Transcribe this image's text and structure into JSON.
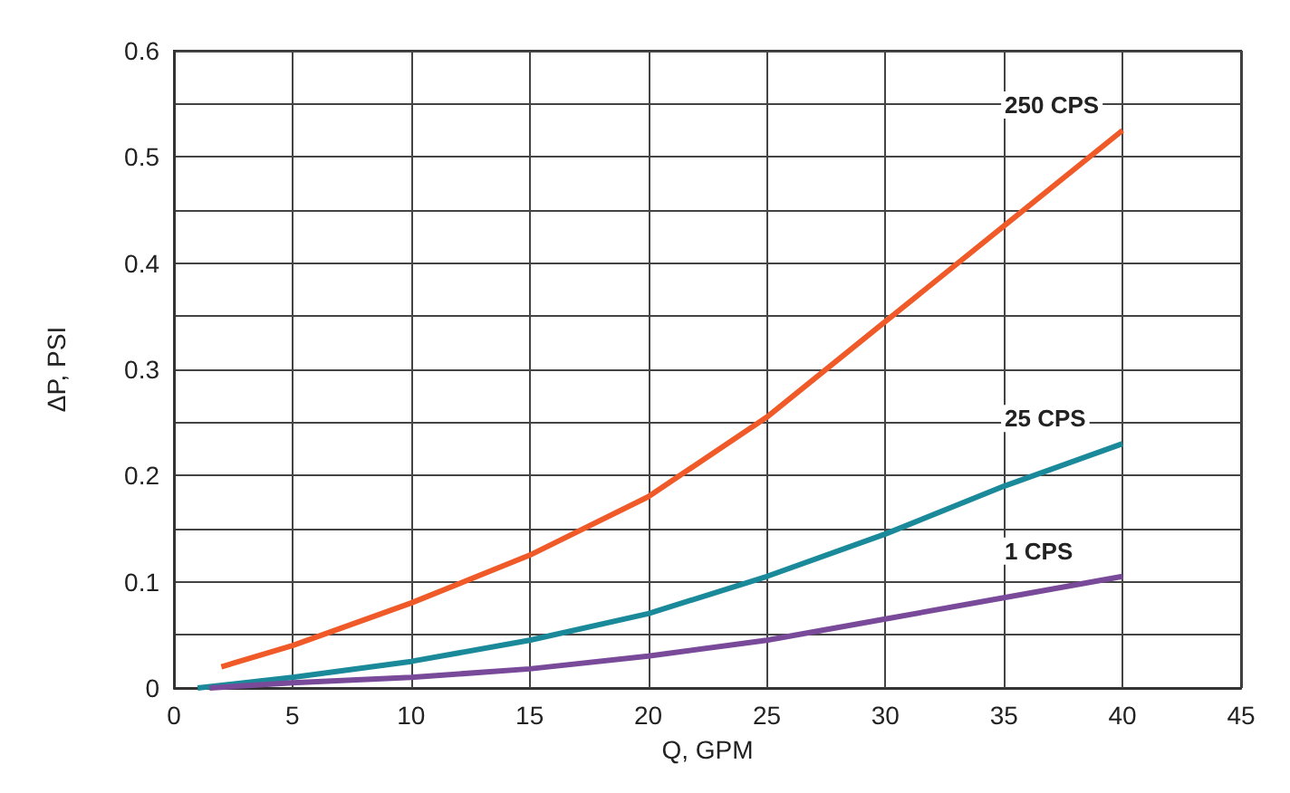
{
  "chart_data": {
    "type": "line",
    "xlabel": "Q, GPM",
    "ylabel": "ΔP, PSI",
    "xlim": [
      0,
      45
    ],
    "xticks": [
      0,
      5,
      10,
      15,
      20,
      25,
      30,
      35,
      40,
      45
    ],
    "ylim": [
      0,
      0.6
    ],
    "yticks": [
      0,
      {
        "value": 0.05,
        "label": null
      },
      0.1,
      {
        "value": 0.15,
        "label": null
      },
      0.2,
      {
        "value": 0.25,
        "label": null
      },
      0.3,
      {
        "value": 0.35,
        "label": null
      },
      0.4,
      {
        "value": 0.45,
        "label": null
      },
      0.5,
      {
        "value": 0.55,
        "label": null
      },
      0.6
    ],
    "grid": true,
    "legend": false,
    "marker": "none",
    "line_style": "solid",
    "series": [
      {
        "name": "250 CPS",
        "color": "#f05a28",
        "x": [
          2,
          5,
          10,
          15,
          20,
          25,
          30,
          35,
          40
        ],
        "values": [
          0.02,
          0.04,
          0.08,
          0.125,
          0.18,
          0.255,
          0.345,
          0.435,
          0.525
        ]
      },
      {
        "name": "25 CPS",
        "color": "#1a8a9a",
        "x": [
          1,
          5,
          10,
          15,
          20,
          25,
          30,
          35,
          40
        ],
        "values": [
          0,
          0.01,
          0.025,
          0.045,
          0.07,
          0.105,
          0.145,
          0.19,
          0.23
        ]
      },
      {
        "name": "1 CPS",
        "color": "#7a4a9a",
        "x": [
          1.5,
          5,
          10,
          15,
          20,
          25,
          30,
          35,
          40
        ],
        "values": [
          0,
          0.005,
          0.01,
          0.018,
          0.03,
          0.045,
          0.065,
          0.085,
          0.105
        ]
      }
    ]
  }
}
